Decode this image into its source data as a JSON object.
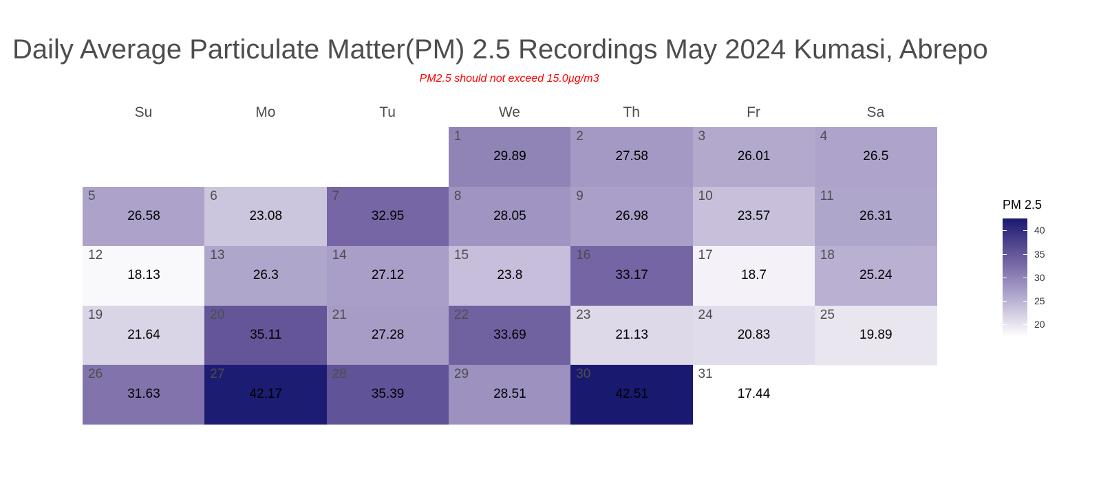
{
  "chart_data": {
    "type": "heatmap",
    "title": "Daily Average Particulate Matter(PM) 2.5 Recordings May 2024 Kumasi, Abrepo",
    "subtitle": "PM2.5 should not exceed 15.0µg/m3",
    "weekdays": [
      "Su",
      "Mo",
      "Tu",
      "We",
      "Th",
      "Fr",
      "Sa"
    ],
    "first_weekday_index": 3,
    "days": [
      1,
      2,
      3,
      4,
      5,
      6,
      7,
      8,
      9,
      10,
      11,
      12,
      13,
      14,
      15,
      16,
      17,
      18,
      19,
      20,
      21,
      22,
      23,
      24,
      25,
      26,
      27,
      28,
      29,
      30,
      31
    ],
    "values": [
      29.89,
      27.58,
      26.01,
      26.5,
      26.58,
      23.08,
      32.95,
      28.05,
      26.98,
      23.57,
      26.31,
      18.13,
      26.3,
      27.12,
      23.8,
      33.17,
      18.7,
      25.24,
      21.64,
      35.11,
      27.28,
      33.69,
      21.13,
      20.83,
      19.89,
      31.63,
      42.17,
      35.39,
      28.51,
      42.51,
      17.44
    ],
    "legend": {
      "title": "PM 2.5",
      "ticks": [
        20,
        25,
        30,
        35,
        40
      ],
      "range": [
        17.44,
        42.51
      ],
      "placement": "right"
    },
    "colors": {
      "low": "#ffffff",
      "high": "#191970"
    }
  }
}
